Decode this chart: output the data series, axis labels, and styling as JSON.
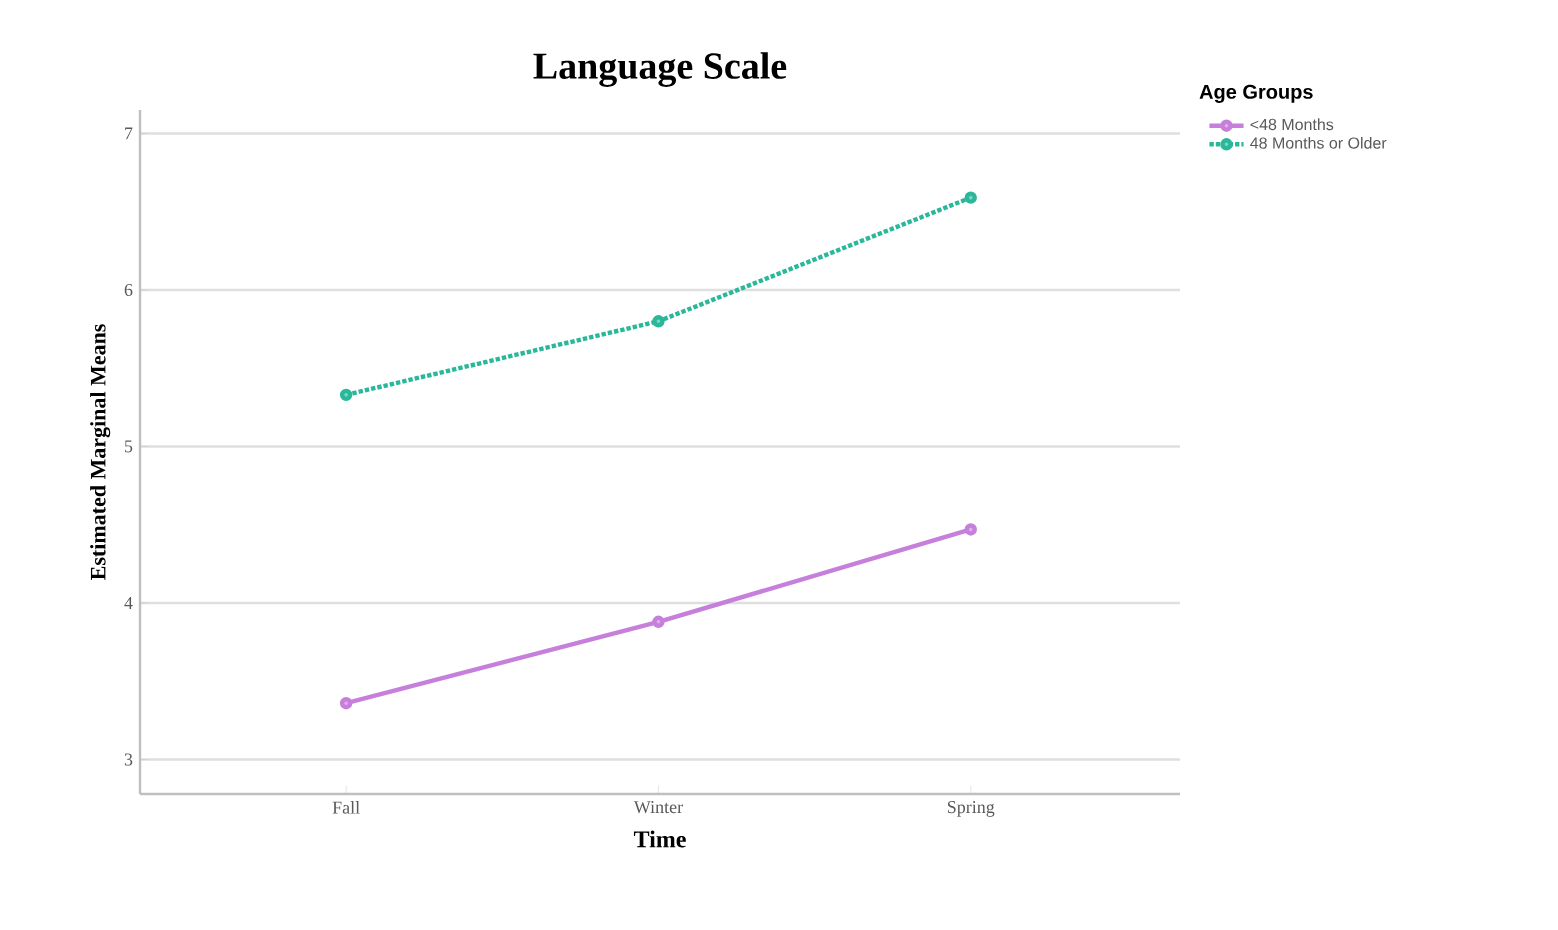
{
  "chart_data": {
    "type": "line",
    "title": "Language Scale",
    "xlabel": "Time",
    "ylabel": "Estimated Marginal Means",
    "legend_title": "Age Groups",
    "categories": [
      "Fall",
      "Winter",
      "Spring"
    ],
    "series": [
      {
        "name": "<48 Months",
        "color": "#c77fdc",
        "values": [
          3.36,
          3.88,
          4.47
        ],
        "line_style": "solid"
      },
      {
        "name": "48 Months or Older",
        "color": "#2bb89a",
        "values": [
          5.33,
          5.8,
          6.59
        ],
        "line_style": "dotted"
      }
    ],
    "ylim": [
      2.78,
      7.15
    ],
    "yticks": [
      3,
      4,
      5,
      6,
      7
    ],
    "grid": "y",
    "legend": "top right",
    "marker": "circle"
  }
}
